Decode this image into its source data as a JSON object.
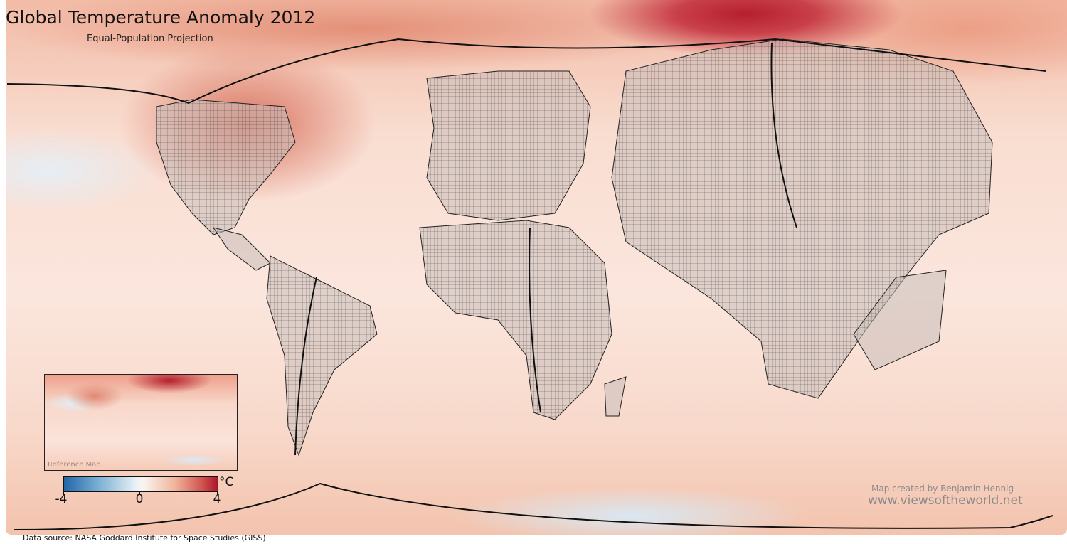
{
  "title": "Global Temperature Anomaly 2012",
  "subtitle": "Equal-Population Projection",
  "inset": {
    "label": "Reference Map"
  },
  "legend": {
    "unit": "°C",
    "min": -4,
    "mid": 0,
    "max": 4,
    "tick_labels": [
      "-4",
      "0",
      "4"
    ],
    "colors": {
      "cold": "#2266a8",
      "neutral": "#f7f7f7",
      "warm": "#a9172b"
    }
  },
  "credit": {
    "author": "Map created by Benjamin Hennig",
    "url": "www.viewsoftheworld.net"
  },
  "source": "Data source: NASA Goddard Institute for Space Studies (GISS)"
}
